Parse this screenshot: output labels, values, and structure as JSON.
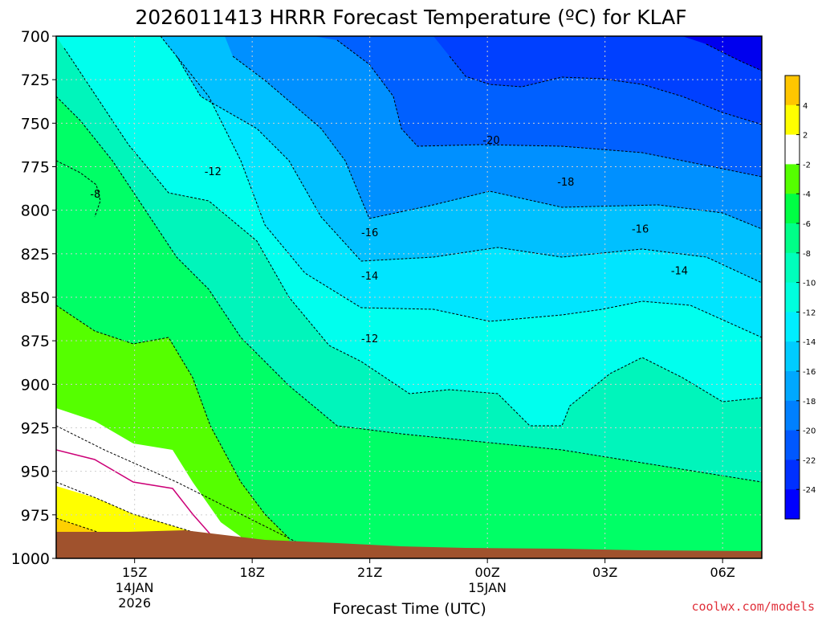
{
  "chart_data": {
    "type": "filled-contour",
    "title": "2026011413 HRRR Forecast Temperature (ºC) for KLAF",
    "xlabel": "Forecast Time (UTC)",
    "ylabel": "",
    "credit": "coolwx.com/models",
    "x_ticks": [
      {
        "t": 15,
        "label": "15Z",
        "sub1": "14JAN",
        "sub2": "2026"
      },
      {
        "t": 18,
        "label": "18Z",
        "sub1": "",
        "sub2": ""
      },
      {
        "t": 21,
        "label": "21Z",
        "sub1": "",
        "sub2": ""
      },
      {
        "t": 24,
        "label": "00Z",
        "sub1": "15JAN",
        "sub2": ""
      },
      {
        "t": 27,
        "label": "03Z",
        "sub1": "",
        "sub2": ""
      },
      {
        "t": 30,
        "label": "06Z",
        "sub1": "",
        "sub2": ""
      }
    ],
    "x_range_hours": [
      13,
      31
    ],
    "y_ticks": [
      700,
      725,
      750,
      775,
      800,
      825,
      850,
      875,
      900,
      925,
      950,
      975,
      1000
    ],
    "y_range_hPa": [
      700,
      1000
    ],
    "grid": true,
    "colorbar": {
      "labels": [
        4,
        2,
        -2,
        -4,
        -6,
        -8,
        -10,
        -12,
        -14,
        -16,
        -18,
        -20,
        -22,
        -24
      ]
    },
    "contour_labels": [
      {
        "t": 14.0,
        "p": 791,
        "text": "-8"
      },
      {
        "t": 17.0,
        "p": 778,
        "text": "-12"
      },
      {
        "t": 21.0,
        "p": 813,
        "text": "-16"
      },
      {
        "t": 21.0,
        "p": 838,
        "text": "-14"
      },
      {
        "t": 21.0,
        "p": 874,
        "text": "-12"
      },
      {
        "t": 24.1,
        "p": 760,
        "text": "-20"
      },
      {
        "t": 26.0,
        "p": 784,
        "text": "-18"
      },
      {
        "t": 27.9,
        "p": 811,
        "text": "-16"
      },
      {
        "t": 28.9,
        "p": 835,
        "text": "-14"
      }
    ]
  }
}
